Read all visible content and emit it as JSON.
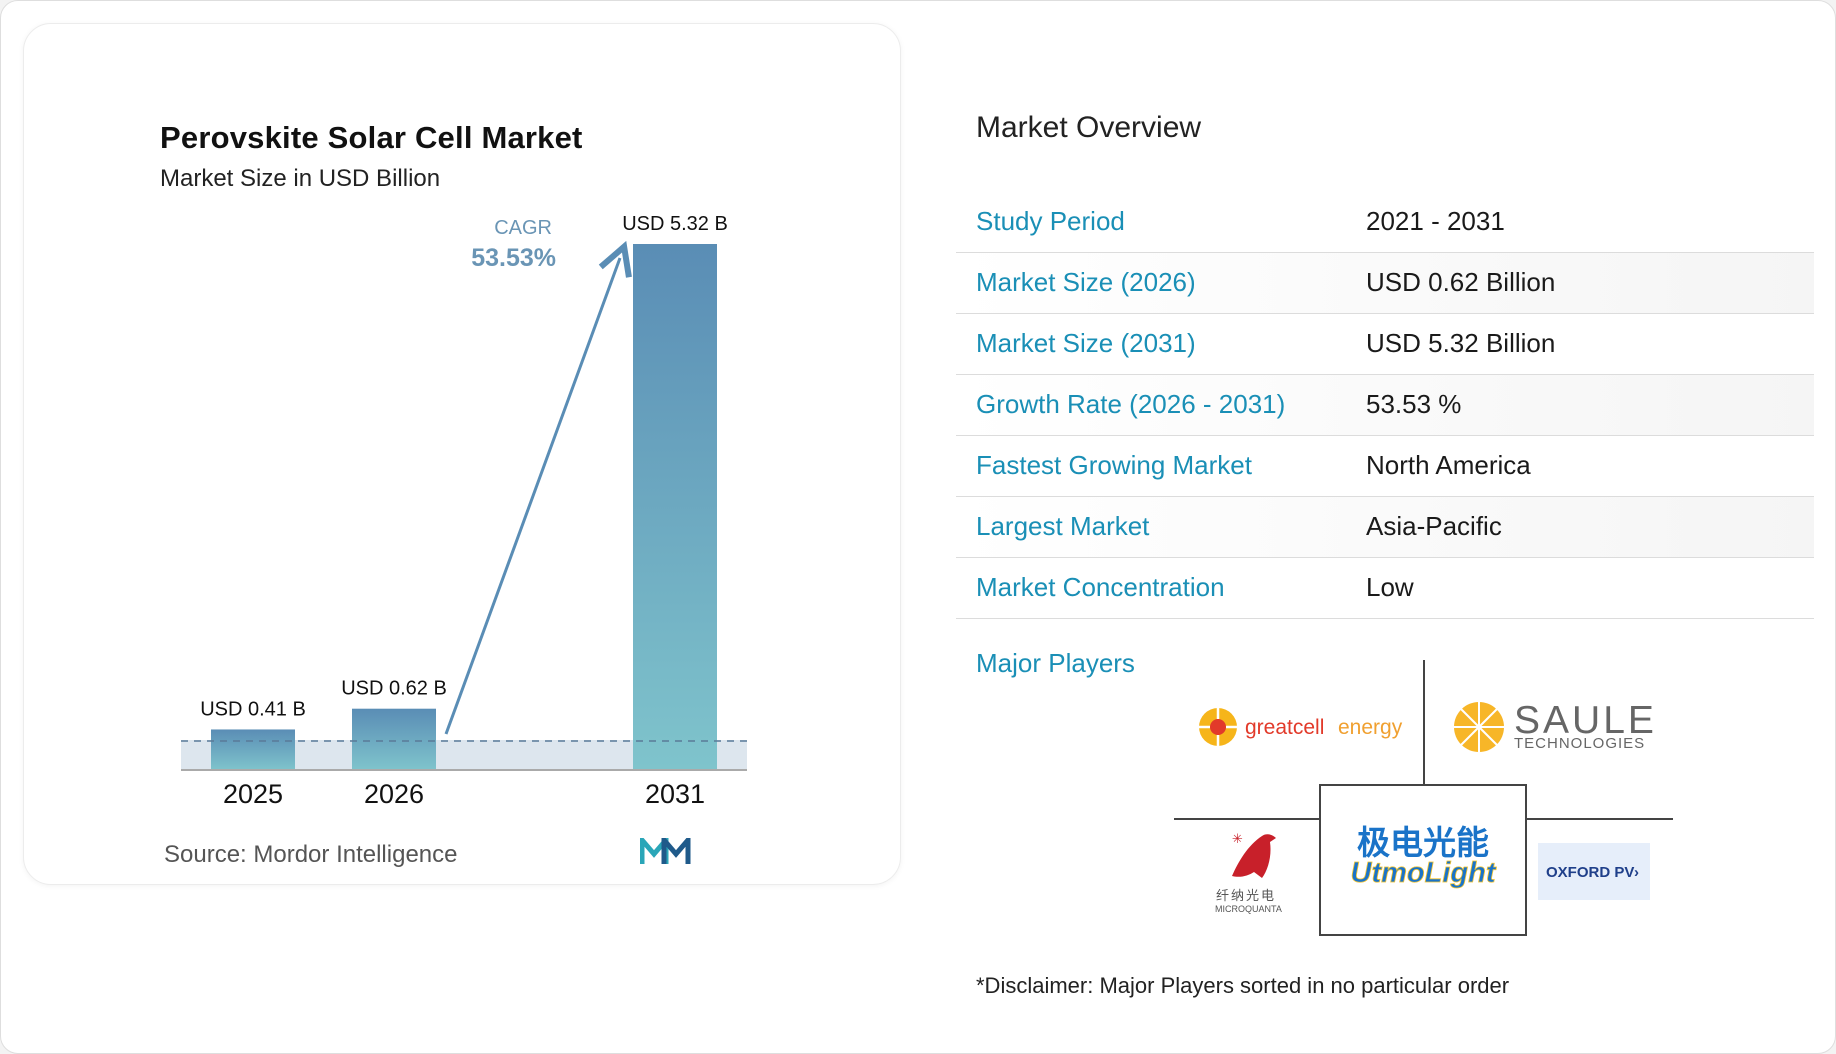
{
  "chart_data": {
    "type": "bar",
    "title": "Perovskite Solar Cell Market",
    "subtitle": "Market Size in USD Billion",
    "categories": [
      "2025",
      "2026",
      "2031"
    ],
    "values": [
      0.41,
      0.62,
      5.32
    ],
    "value_labels": [
      "USD 0.41 B",
      "USD 0.62 B",
      "USD 5.32 B"
    ],
    "unit": "USD Billion",
    "annotation": {
      "label": "CAGR",
      "value": "53.53%"
    },
    "source": "Source: Mordor Intelligence",
    "colors": {
      "bar_top": "#5a8db5",
      "bar_bottom": "#7fc4cc",
      "arrow": "#5a8db5",
      "baseline_band": "#dde6ee",
      "dashed_line": "#5a7a98",
      "annotation": "#6a95b5"
    }
  },
  "overview": {
    "title": "Market Overview",
    "rows": [
      {
        "label": "Study Period",
        "value": "2021 - 2031"
      },
      {
        "label": "Market Size (2026)",
        "value": "USD 0.62 Billion"
      },
      {
        "label": "Market Size (2031)",
        "value": "USD 5.32 Billion"
      },
      {
        "label": "Growth Rate (2026 - 2031)",
        "value": "53.53 %"
      },
      {
        "label": "Fastest Growing Market",
        "value": "North America"
      },
      {
        "label": "Largest Market",
        "value": "Asia-Pacific"
      },
      {
        "label": "Market Concentration",
        "value": "Low"
      }
    ],
    "label_color": "#1a8fb6"
  },
  "major_players": {
    "label": "Major Players",
    "logos": [
      {
        "name": "greatcellenergy",
        "text_parts": [
          "greatcell",
          "energy"
        ]
      },
      {
        "name": "SAULE TECHNOLOGIES",
        "text_parts": [
          "SAULE",
          "TECHNOLOGIES"
        ]
      },
      {
        "name": "MicroQuanta",
        "text_parts": [
          "纤纳光电",
          "MICROQUANTA"
        ]
      },
      {
        "name": "UtmoLight",
        "text_parts": [
          "极电光能",
          "UtmoLight"
        ]
      },
      {
        "name": "OXFORD PV",
        "text_parts": [
          "OXFORD PV"
        ]
      }
    ]
  },
  "disclaimer": "*Disclaimer: Major Players sorted in no particular order"
}
